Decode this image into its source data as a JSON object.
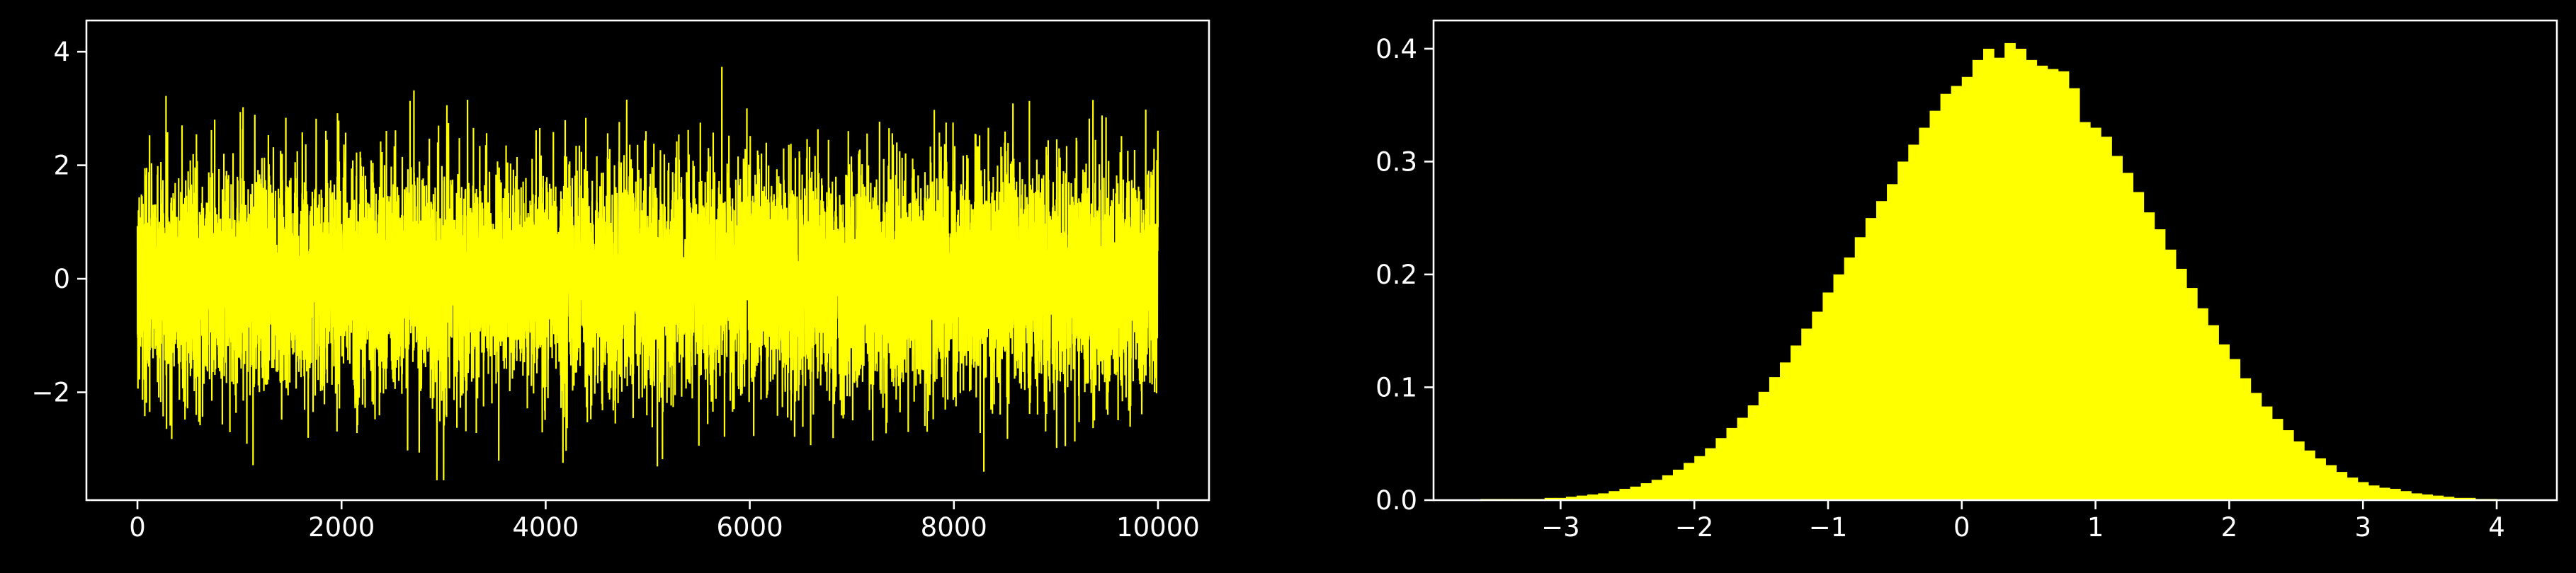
{
  "colors": {
    "background": "#000000",
    "foreground": "#ffffff",
    "series": "#ffff00"
  },
  "chart_data": [
    {
      "type": "line",
      "title": "",
      "xlabel": "",
      "ylabel": "",
      "xlim": [
        -500,
        10500
      ],
      "ylim": [
        -3.9,
        4.55
      ],
      "grid": false,
      "legend": "none",
      "n_points": 10000,
      "x_range": [
        0,
        10000
      ],
      "y_observed_min": -3.55,
      "y_observed_max": 4.2,
      "series": [
        {
          "distribution": "standard normal noise, mean 0, std 1",
          "color": "#ffff00"
        }
      ],
      "xticks": [
        0,
        2000,
        4000,
        6000,
        8000,
        10000
      ],
      "xtick_labels": [
        "0",
        "2000",
        "4000",
        "6000",
        "8000",
        "10000"
      ],
      "yticks": [
        -2,
        0,
        2,
        4
      ],
      "ytick_labels": [
        "−2",
        "0",
        "2",
        "4"
      ]
    },
    {
      "type": "bar",
      "subtype": "histogram",
      "title": "",
      "xlabel": "",
      "ylabel": "",
      "xlim": [
        -3.95,
        4.45
      ],
      "ylim": [
        0,
        0.425
      ],
      "grid": false,
      "legend": "none",
      "bins_start": -3.6,
      "bin_width": 0.08,
      "densities": [
        0.001,
        0.001,
        0.001,
        0.001,
        0.001,
        0.001,
        0.002,
        0.002,
        0.003,
        0.004,
        0.005,
        0.006,
        0.008,
        0.01,
        0.012,
        0.015,
        0.018,
        0.022,
        0.027,
        0.033,
        0.039,
        0.046,
        0.055,
        0.064,
        0.073,
        0.084,
        0.096,
        0.109,
        0.122,
        0.137,
        0.152,
        0.167,
        0.184,
        0.2,
        0.215,
        0.233,
        0.25,
        0.265,
        0.28,
        0.3,
        0.315,
        0.33,
        0.345,
        0.36,
        0.367,
        0.375,
        0.39,
        0.4,
        0.392,
        0.405,
        0.4,
        0.39,
        0.385,
        0.382,
        0.38,
        0.365,
        0.335,
        0.33,
        0.322,
        0.305,
        0.29,
        0.273,
        0.255,
        0.24,
        0.222,
        0.205,
        0.188,
        0.17,
        0.155,
        0.138,
        0.125,
        0.108,
        0.095,
        0.083,
        0.072,
        0.062,
        0.052,
        0.044,
        0.037,
        0.031,
        0.025,
        0.02,
        0.016,
        0.013,
        0.011,
        0.01,
        0.008,
        0.006,
        0.005,
        0.004,
        0.003,
        0.002,
        0.002,
        0.001,
        0.001
      ],
      "xticks": [
        -3,
        -2,
        -1,
        0,
        1,
        2,
        3,
        4
      ],
      "xtick_labels": [
        "−3",
        "−2",
        "−1",
        "0",
        "1",
        "2",
        "3",
        "4"
      ],
      "yticks": [
        0.0,
        0.1,
        0.2,
        0.3,
        0.4
      ],
      "ytick_labels": [
        "0.0",
        "0.1",
        "0.2",
        "0.3",
        "0.4"
      ]
    }
  ]
}
